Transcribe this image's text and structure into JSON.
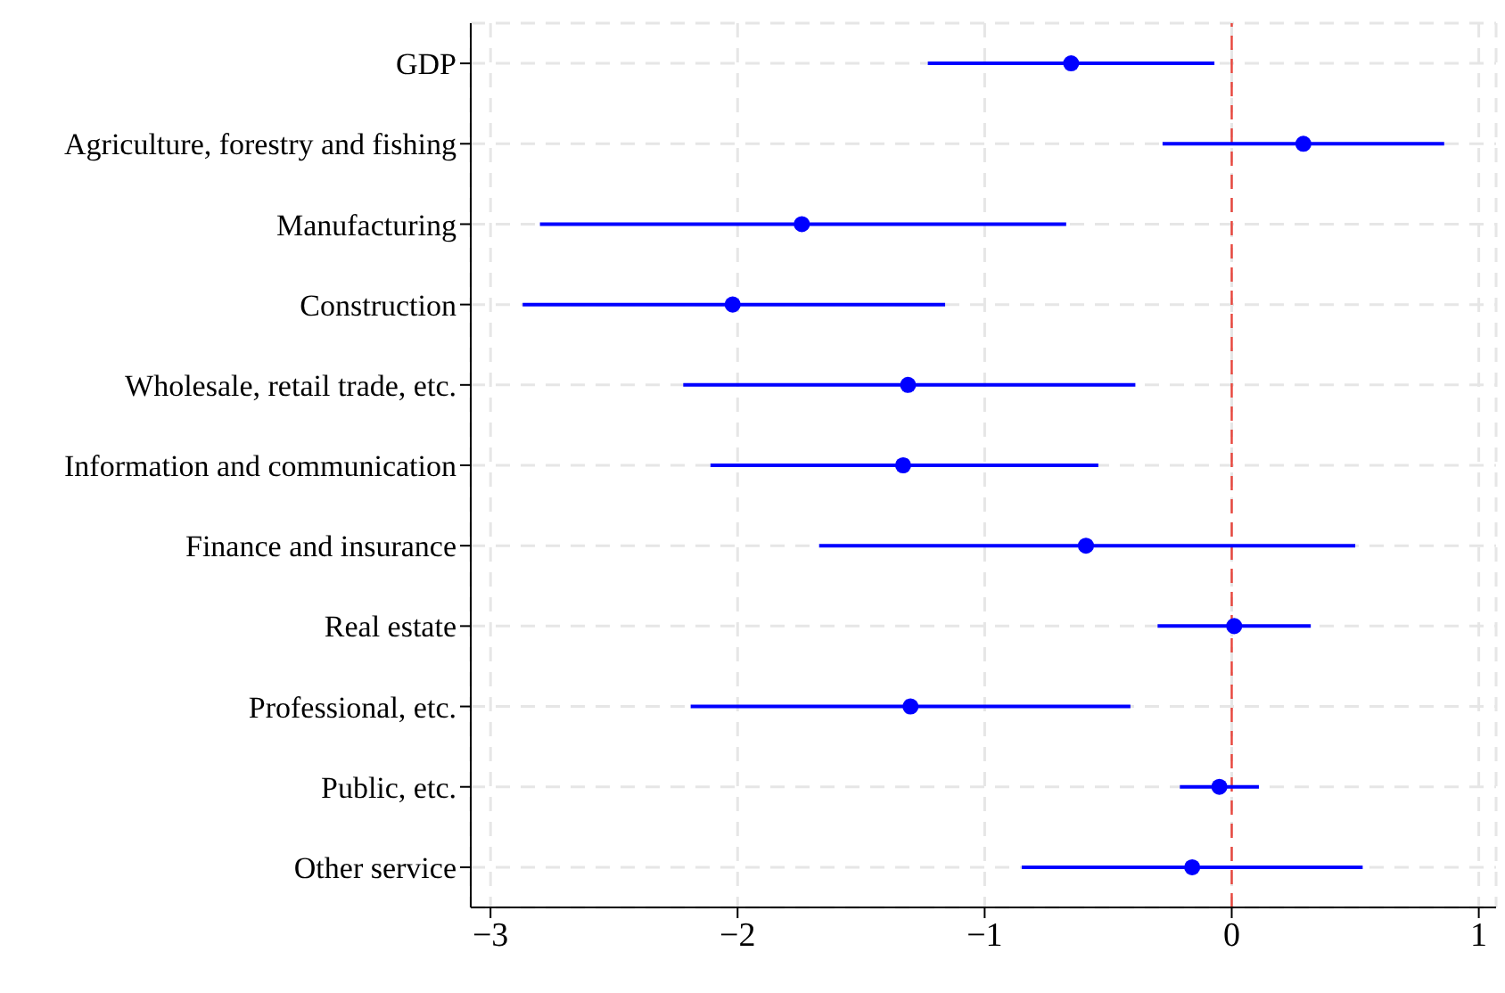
{
  "chart_data": {
    "type": "scatter",
    "orientation": "horizontal",
    "categories": [
      "GDP",
      "Agriculture, forestry and fishing",
      "Manufacturing",
      "Construction",
      "Wholesale, retail trade, etc.",
      "Information and communication",
      "Finance and insurance",
      "Real estate",
      "Professional, etc.",
      "Public, etc.",
      "Other service"
    ],
    "values": [
      -0.65,
      0.29,
      -1.74,
      -2.02,
      -1.31,
      -1.33,
      -0.59,
      0.01,
      -1.3,
      -0.05,
      -0.16
    ],
    "errors": [
      [
        -1.23,
        -0.07
      ],
      [
        -0.28,
        0.86
      ],
      [
        -2.8,
        -0.67
      ],
      [
        -2.87,
        -1.16
      ],
      [
        -2.22,
        -0.39
      ],
      [
        -2.11,
        -0.54
      ],
      [
        -1.67,
        0.5
      ],
      [
        -0.3,
        0.32
      ],
      [
        -2.19,
        -0.41
      ],
      [
        -0.21,
        0.11
      ],
      [
        -0.85,
        0.53
      ]
    ],
    "color": "#0000ff",
    "marker": "circle",
    "xlim": [
      -3.08,
      1.07
    ],
    "xticks": [
      -3,
      -2,
      -1,
      0,
      1
    ],
    "grid": true,
    "ref_lines": [
      {
        "axis": "x",
        "value": 0,
        "color": "#e8453c",
        "line_style": "dashed"
      }
    ]
  }
}
